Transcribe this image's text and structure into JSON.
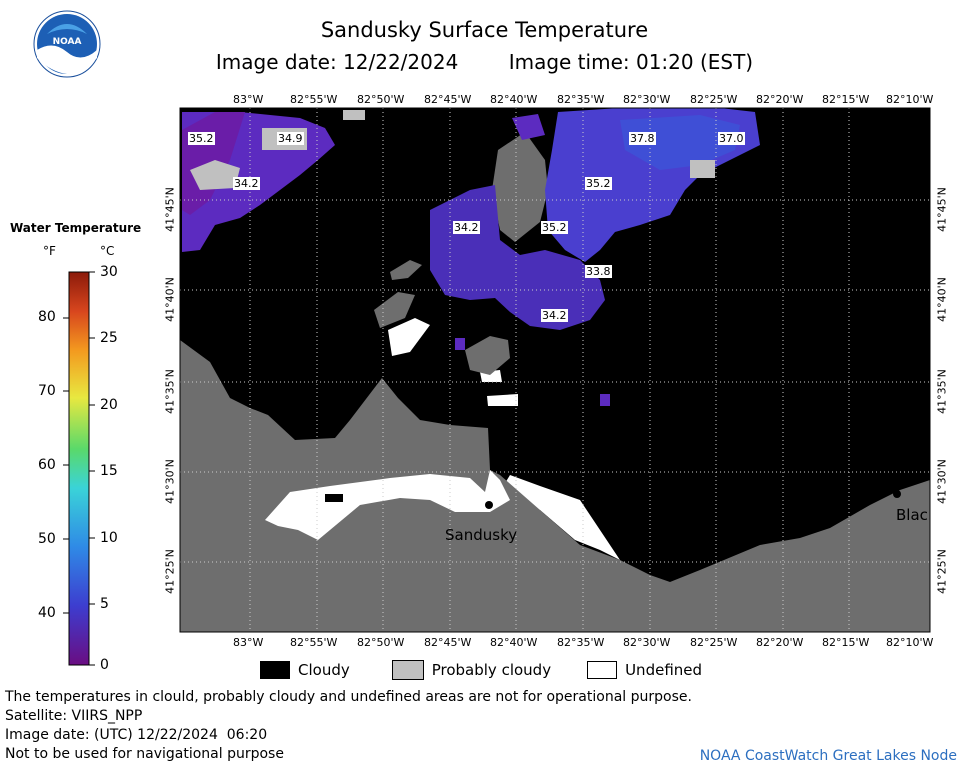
{
  "header": {
    "title": "Sandusky Surface Temperature",
    "image_date": "Image date: 12/22/2024",
    "image_time": "Image time: 01:20 (EST)"
  },
  "logo": {
    "text": "NOAA",
    "icon": "noaa-logo-icon"
  },
  "legend": {
    "title": "Water Temperature",
    "unit_f": "°F",
    "unit_c": "°C",
    "f_ticks": [
      "80",
      "70",
      "60",
      "50",
      "40"
    ],
    "c_ticks": [
      "30",
      "25",
      "20",
      "15",
      "10",
      "5",
      "0"
    ],
    "colors": [
      "#6a0d82",
      "#3d3dcf",
      "#2f8ae6",
      "#3ad3d8",
      "#5ad96a",
      "#e8e840",
      "#f39a1f",
      "#d8461e",
      "#8b1a0a"
    ]
  },
  "map": {
    "lon_labels": [
      "83°W",
      "82°55'W",
      "82°50'W",
      "82°45'W",
      "82°40'W",
      "82°35'W",
      "82°30'W",
      "82°25'W",
      "82°20'W",
      "82°15'W",
      "82°10'W"
    ],
    "lat_labels": [
      "41°45'N",
      "41°40'N",
      "41°35'N",
      "41°30'N",
      "41°25'N"
    ],
    "temp_labels": [
      "35.2",
      "34.9",
      "34.2",
      "34.2",
      "35.2",
      "37.8",
      "37.0",
      "35.2",
      "33.8",
      "34.2"
    ],
    "city_labels": [
      "Sandusky",
      "Blac"
    ],
    "colors": {
      "cloudy": "#000000",
      "probably_cloudy": "#c0c0c0",
      "land": "#6e6e6e",
      "undefined": "#ffffff",
      "water": "#5c2bc0"
    }
  },
  "key": {
    "cloudy": "Cloudy",
    "probably_cloudy": "Probably cloudy",
    "undefined": "Undefined"
  },
  "notes": {
    "line1": "The temperatures in clould, probably cloudy and undefined areas are not for operational purpose.",
    "line2": "Satellite: VIIRS_NPP",
    "line3": "Image date: (UTC) 12/22/2024  06:20",
    "line4": "Not to be used for navigational purpose"
  },
  "credit": "NOAA CoastWatch Great Lakes Node"
}
